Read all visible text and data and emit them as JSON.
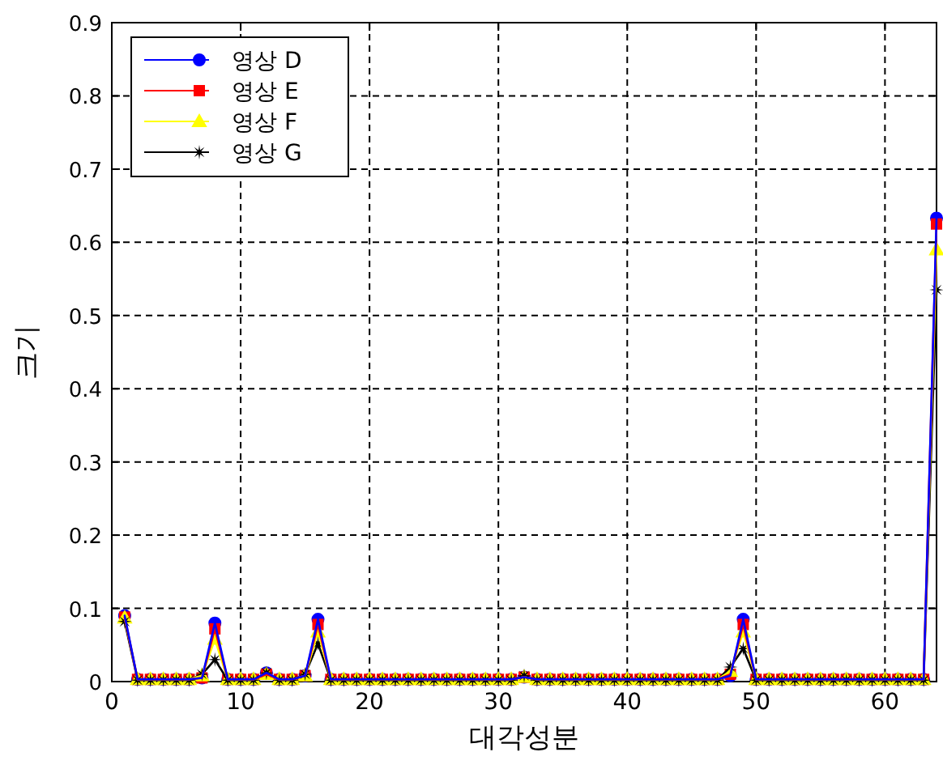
{
  "chart_data": {
    "type": "line",
    "xlabel": "대각성분",
    "ylabel": "크기",
    "x": [
      1,
      2,
      3,
      4,
      5,
      6,
      7,
      8,
      9,
      10,
      11,
      12,
      13,
      14,
      15,
      16,
      17,
      18,
      19,
      20,
      21,
      22,
      23,
      24,
      25,
      26,
      27,
      28,
      29,
      30,
      31,
      32,
      33,
      34,
      35,
      36,
      37,
      38,
      39,
      40,
      41,
      42,
      43,
      44,
      45,
      46,
      47,
      48,
      49,
      50,
      51,
      52,
      53,
      54,
      55,
      56,
      57,
      58,
      59,
      60,
      61,
      62,
      63,
      64
    ],
    "xlim": [
      0,
      64
    ],
    "xticks": [
      0,
      10,
      20,
      30,
      40,
      50,
      60
    ],
    "ylim": [
      0,
      0.9
    ],
    "yticks": [
      0,
      0.1,
      0.2,
      0.3,
      0.4,
      0.5,
      0.6,
      0.7,
      0.8,
      0.9
    ],
    "grid": true,
    "legend": "top left",
    "line_style": "solid",
    "series": [
      {
        "name": "영상 D",
        "color": "#0000ff",
        "marker": "circle",
        "values": [
          0.09,
          0.003,
          0.003,
          0.003,
          0.003,
          0.003,
          0.005,
          0.08,
          0.003,
          0.003,
          0.003,
          0.012,
          0.003,
          0.003,
          0.008,
          0.085,
          0.003,
          0.003,
          0.003,
          0.003,
          0.003,
          0.003,
          0.003,
          0.003,
          0.003,
          0.003,
          0.003,
          0.003,
          0.003,
          0.003,
          0.003,
          0.006,
          0.003,
          0.003,
          0.003,
          0.003,
          0.003,
          0.003,
          0.003,
          0.003,
          0.003,
          0.003,
          0.003,
          0.003,
          0.003,
          0.003,
          0.003,
          0.008,
          0.085,
          0.003,
          0.003,
          0.003,
          0.003,
          0.003,
          0.003,
          0.003,
          0.003,
          0.003,
          0.003,
          0.003,
          0.003,
          0.003,
          0.003,
          0.633
        ]
      },
      {
        "name": "영상 E",
        "color": "#ff0000",
        "marker": "square",
        "values": [
          0.088,
          0.003,
          0.003,
          0.003,
          0.003,
          0.003,
          0.005,
          0.072,
          0.003,
          0.003,
          0.003,
          0.01,
          0.003,
          0.003,
          0.008,
          0.078,
          0.003,
          0.003,
          0.003,
          0.003,
          0.003,
          0.003,
          0.003,
          0.003,
          0.003,
          0.003,
          0.003,
          0.003,
          0.003,
          0.003,
          0.003,
          0.006,
          0.003,
          0.003,
          0.003,
          0.003,
          0.003,
          0.003,
          0.003,
          0.003,
          0.003,
          0.003,
          0.003,
          0.003,
          0.003,
          0.003,
          0.003,
          0.01,
          0.078,
          0.003,
          0.003,
          0.003,
          0.003,
          0.003,
          0.003,
          0.003,
          0.003,
          0.003,
          0.003,
          0.003,
          0.003,
          0.003,
          0.003,
          0.625
        ]
      },
      {
        "name": "영상 F",
        "color": "#ffff00",
        "marker": "triangle",
        "values": [
          0.087,
          0.003,
          0.003,
          0.003,
          0.003,
          0.003,
          0.008,
          0.058,
          0.003,
          0.003,
          0.003,
          0.01,
          0.003,
          0.003,
          0.008,
          0.068,
          0.003,
          0.003,
          0.003,
          0.003,
          0.003,
          0.003,
          0.003,
          0.003,
          0.003,
          0.003,
          0.003,
          0.003,
          0.003,
          0.003,
          0.003,
          0.006,
          0.003,
          0.003,
          0.003,
          0.003,
          0.003,
          0.003,
          0.003,
          0.003,
          0.003,
          0.003,
          0.003,
          0.003,
          0.003,
          0.003,
          0.003,
          0.014,
          0.068,
          0.003,
          0.003,
          0.003,
          0.003,
          0.003,
          0.003,
          0.003,
          0.003,
          0.003,
          0.003,
          0.003,
          0.003,
          0.003,
          0.003,
          0.59
        ]
      },
      {
        "name": "영상 G",
        "color": "#000000",
        "marker": "star",
        "values": [
          0.082,
          0.002,
          0.002,
          0.002,
          0.002,
          0.002,
          0.01,
          0.03,
          0.002,
          0.002,
          0.002,
          0.012,
          0.002,
          0.002,
          0.01,
          0.052,
          0.002,
          0.002,
          0.002,
          0.002,
          0.002,
          0.002,
          0.002,
          0.002,
          0.002,
          0.002,
          0.002,
          0.002,
          0.002,
          0.002,
          0.002,
          0.008,
          0.002,
          0.002,
          0.002,
          0.002,
          0.002,
          0.002,
          0.002,
          0.002,
          0.002,
          0.002,
          0.002,
          0.002,
          0.002,
          0.002,
          0.002,
          0.02,
          0.045,
          0.002,
          0.002,
          0.002,
          0.002,
          0.002,
          0.002,
          0.002,
          0.002,
          0.002,
          0.002,
          0.002,
          0.002,
          0.002,
          0.002,
          0.535
        ]
      }
    ]
  }
}
